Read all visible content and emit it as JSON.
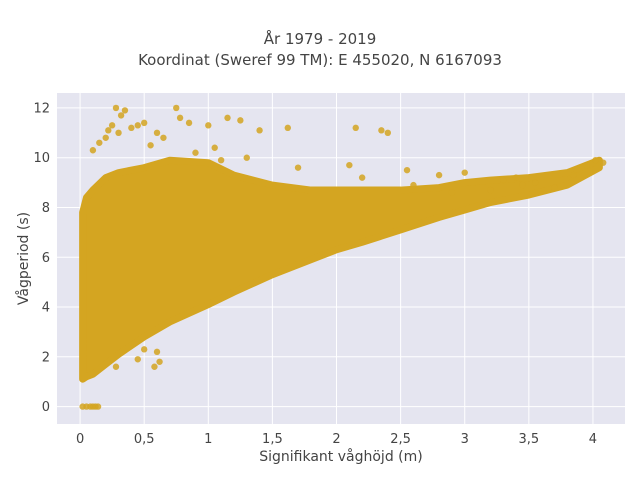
{
  "chart_data": {
    "type": "scatter",
    "title_line1": "År 1979 - 2019",
    "title_line2": "Koordinat (Sweref 99 TM): E 455020, N 6167093",
    "xlabel": "Signifikant våghöjd (m)",
    "ylabel": "Vågperiod (s)",
    "xlim": [
      -0.18,
      4.25
    ],
    "ylim": [
      -0.7,
      12.6
    ],
    "x_ticks": [
      0,
      0.5,
      1,
      1.5,
      2,
      2.5,
      3,
      3.5,
      4
    ],
    "x_tick_labels": [
      "0",
      "0,5",
      "1",
      "1,5",
      "2",
      "2,5",
      "3",
      "3,5",
      "4"
    ],
    "y_ticks": [
      0,
      2,
      4,
      6,
      8,
      10,
      12
    ],
    "y_tick_labels": [
      "0",
      "2",
      "4",
      "6",
      "8",
      "10",
      "12"
    ],
    "grid": true,
    "legend": "none",
    "colors": {
      "marker": "#d4a521",
      "plot_bg": "#e5e5f0",
      "grid": "#ffffff"
    },
    "envelope": {
      "x": [
        0.02,
        0.05,
        0.1,
        0.2,
        0.3,
        0.5,
        0.7,
        1.0,
        1.2,
        1.5,
        1.8,
        2.0,
        2.2,
        2.5,
        2.8,
        3.0,
        3.2,
        3.5,
        3.8,
        4.05
      ],
      "y_low": [
        1.1,
        1.2,
        1.3,
        1.7,
        2.1,
        2.8,
        3.4,
        4.1,
        4.6,
        5.3,
        5.9,
        6.3,
        6.6,
        7.1,
        7.6,
        7.9,
        8.2,
        8.5,
        8.9,
        9.6
      ],
      "y_high": [
        7.8,
        8.4,
        8.7,
        9.2,
        9.4,
        9.6,
        9.9,
        9.8,
        9.3,
        8.9,
        8.7,
        8.7,
        8.7,
        8.7,
        8.8,
        9.0,
        9.1,
        9.2,
        9.4,
        9.9
      ]
    },
    "points": [
      [
        0.02,
        0.0
      ],
      [
        0.05,
        0.0
      ],
      [
        0.08,
        0.0
      ],
      [
        0.1,
        0.0
      ],
      [
        0.12,
        0.0
      ],
      [
        0.14,
        0.0
      ],
      [
        0.25,
        11.3
      ],
      [
        0.28,
        12.0
      ],
      [
        0.32,
        11.7
      ],
      [
        0.35,
        11.9
      ],
      [
        0.3,
        11.0
      ],
      [
        0.4,
        11.2
      ],
      [
        0.22,
        11.1
      ],
      [
        0.45,
        11.3
      ],
      [
        0.5,
        11.4
      ],
      [
        0.6,
        11.0
      ],
      [
        0.75,
        12.0
      ],
      [
        0.78,
        11.6
      ],
      [
        0.85,
        11.4
      ],
      [
        1.0,
        11.3
      ],
      [
        1.15,
        11.6
      ],
      [
        1.25,
        11.5
      ],
      [
        1.4,
        11.1
      ],
      [
        1.62,
        11.2
      ],
      [
        2.15,
        11.2
      ],
      [
        2.35,
        11.1
      ],
      [
        2.4,
        11.0
      ],
      [
        0.1,
        10.3
      ],
      [
        0.15,
        10.6
      ],
      [
        0.2,
        10.8
      ],
      [
        0.55,
        10.5
      ],
      [
        0.65,
        10.8
      ],
      [
        0.9,
        10.2
      ],
      [
        1.05,
        10.4
      ],
      [
        1.1,
        9.9
      ],
      [
        1.3,
        10.0
      ],
      [
        1.7,
        9.6
      ],
      [
        2.1,
        9.7
      ],
      [
        2.2,
        9.2
      ],
      [
        2.55,
        9.5
      ],
      [
        2.8,
        9.3
      ],
      [
        3.0,
        9.4
      ],
      [
        3.3,
        9.1
      ],
      [
        3.45,
        8.9
      ],
      [
        3.55,
        9.0
      ],
      [
        3.7,
        8.8
      ],
      [
        3.85,
        9.3
      ],
      [
        3.95,
        9.7
      ],
      [
        4.02,
        9.9
      ],
      [
        4.08,
        9.8
      ],
      [
        2.6,
        8.9
      ],
      [
        2.9,
        8.6
      ],
      [
        3.2,
        8.7
      ],
      [
        3.4,
        9.2
      ],
      [
        0.28,
        1.6
      ],
      [
        0.45,
        1.9
      ],
      [
        0.6,
        2.2
      ],
      [
        0.62,
        1.8
      ],
      [
        0.5,
        2.3
      ],
      [
        0.58,
        1.6
      ]
    ]
  }
}
